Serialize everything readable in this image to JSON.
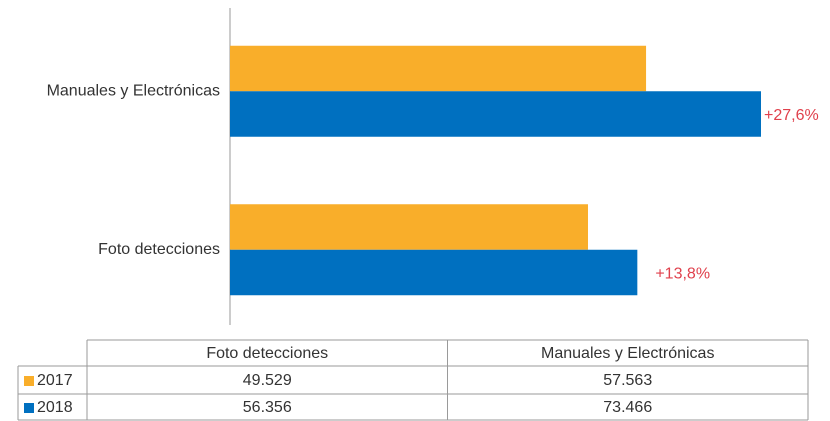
{
  "chart_data": {
    "type": "barh",
    "categories": [
      "Foto detecciones",
      "Manuales y Electrónicas"
    ],
    "series": [
      {
        "name": "2017",
        "color": "#f9ae2a",
        "values": [
          49529,
          57563
        ],
        "value_labels": [
          "49.529",
          "57.563"
        ]
      },
      {
        "name": "2018",
        "color": "#0070c0",
        "values": [
          56356,
          73466
        ],
        "value_labels": [
          "56.356",
          "73.466"
        ]
      }
    ],
    "annotations": [
      "+13,8%",
      "+27,6%"
    ],
    "annotation_color": "#e0404c"
  }
}
